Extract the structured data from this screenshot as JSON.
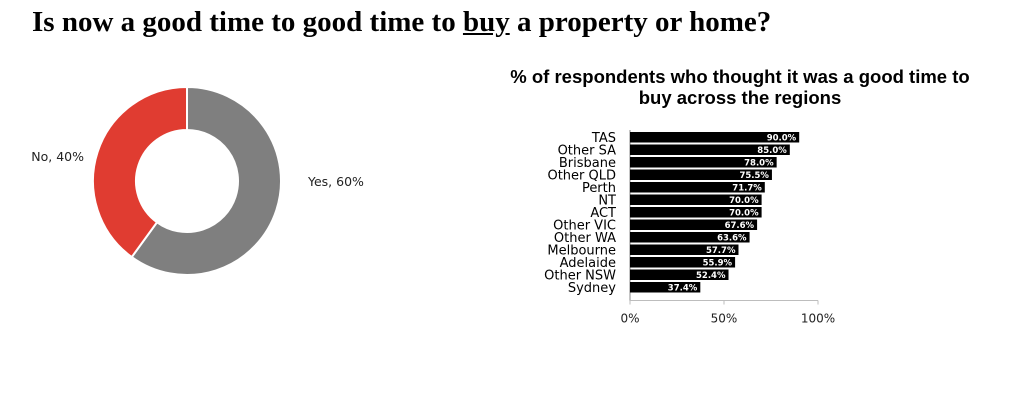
{
  "title": {
    "before": "Is now a good time to good time to ",
    "underlined": "buy",
    "after": " a property or home?"
  },
  "chart_data": [
    {
      "type": "pie",
      "variant": "donut",
      "title": "",
      "slices": [
        {
          "label": "Yes",
          "value": 60,
          "display": "Yes, 60%",
          "color": "#7f7f7f"
        },
        {
          "label": "No",
          "value": 40,
          "display": "No, 40%",
          "color": "#e03c31"
        }
      ]
    },
    {
      "type": "bar",
      "orientation": "horizontal",
      "title": "% of respondents who thought it was a good time to buy across the regions",
      "xlabel": "",
      "ylabel": "",
      "categories": [
        "TAS",
        "Other SA",
        "Brisbane",
        "Other QLD",
        "Perth",
        "NT",
        "ACT",
        "Other VIC",
        "Other WA",
        "Melbourne",
        "Adelaide",
        "Other NSW",
        "Sydney"
      ],
      "values": [
        90.0,
        85.0,
        78.0,
        75.5,
        71.7,
        70.0,
        70.0,
        67.6,
        63.6,
        57.7,
        55.9,
        52.4,
        37.4
      ],
      "value_labels": [
        "90.0%",
        "85.0%",
        "78.0%",
        "75.5%",
        "71.7%",
        "70.0%",
        "70.0%",
        "67.6%",
        "63.6%",
        "57.7%",
        "55.9%",
        "52.4%",
        "37.4%"
      ],
      "xlim": [
        0,
        100
      ],
      "xticks": [
        0,
        50,
        100
      ],
      "xtick_labels": [
        "0%",
        "50%",
        "100%"
      ],
      "bar_color": "#000000",
      "grid": false,
      "legend": "none"
    }
  ]
}
